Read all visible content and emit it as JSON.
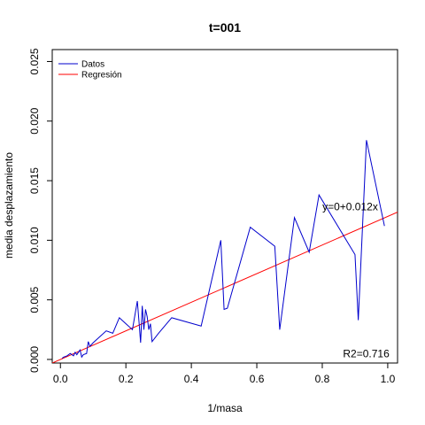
{
  "chart_data": {
    "type": "line",
    "title": "t=001",
    "xlabel": "1/masa",
    "ylabel": "media desplazamiento",
    "xlim": [
      -0.025,
      1.03
    ],
    "ylim": [
      -0.0003,
      0.026
    ],
    "xticks": [
      {
        "value": 0.0,
        "label": "0.0"
      },
      {
        "value": 0.2,
        "label": "0.2"
      },
      {
        "value": 0.4,
        "label": "0.4"
      },
      {
        "value": 0.6,
        "label": "0.6"
      },
      {
        "value": 0.8,
        "label": "0.8"
      },
      {
        "value": 1.0,
        "label": "1.0"
      }
    ],
    "yticks": [
      {
        "value": 0.0,
        "label": "0.000"
      },
      {
        "value": 0.005,
        "label": "0.005"
      },
      {
        "value": 0.01,
        "label": "0.010"
      },
      {
        "value": 0.015,
        "label": "0.015"
      },
      {
        "value": 0.02,
        "label": "0.020"
      },
      {
        "value": 0.025,
        "label": "0.025"
      }
    ],
    "grid": false,
    "legend_position": "top-left",
    "legend": [
      {
        "label": "Datos",
        "color": "#0000cd"
      },
      {
        "label": "Regresión",
        "color": "#ff0000"
      }
    ],
    "series": [
      {
        "name": "Datos",
        "color": "#0000cd",
        "x": [
          0.005,
          0.01,
          0.02,
          0.03,
          0.04,
          0.045,
          0.05,
          0.06,
          0.065,
          0.07,
          0.08,
          0.085,
          0.09,
          0.1,
          0.12,
          0.14,
          0.16,
          0.18,
          0.2,
          0.22,
          0.235,
          0.24,
          0.245,
          0.25,
          0.255,
          0.26,
          0.265,
          0.27,
          0.275,
          0.28,
          0.3,
          0.34,
          0.43,
          0.49,
          0.5,
          0.51,
          0.58,
          0.655,
          0.67,
          0.715,
          0.76,
          0.79,
          0.9,
          0.91,
          0.935,
          0.99
        ],
        "y": [
          0.0001,
          0.0002,
          0.0003,
          0.0005,
          0.0003,
          0.0006,
          0.0004,
          0.0008,
          0.0002,
          0.0004,
          0.0005,
          0.0015,
          0.0011,
          0.0014,
          0.0019,
          0.0024,
          0.0022,
          0.0035,
          0.003,
          0.0025,
          0.0049,
          0.0032,
          0.0014,
          0.0045,
          0.0025,
          0.0042,
          0.0036,
          0.0025,
          0.003,
          0.0015,
          0.0022,
          0.0035,
          0.0028,
          0.01,
          0.0042,
          0.0043,
          0.0111,
          0.0095,
          0.0025,
          0.0119,
          0.009,
          0.0138,
          0.0088,
          0.0033,
          0.0184,
          0.0112
        ]
      },
      {
        "name": "Regresión",
        "color": "#ff0000",
        "x": [
          -0.025,
          1.03
        ],
        "y": [
          -0.0003,
          0.01236
        ]
      }
    ],
    "annotations": [
      {
        "text": "y=0+0.012x",
        "x": 0.97,
        "y": 0.0125,
        "anchor": "end"
      },
      {
        "text": "R2=0.716",
        "x": 1.005,
        "y": 0.0002,
        "anchor": "end"
      }
    ]
  }
}
